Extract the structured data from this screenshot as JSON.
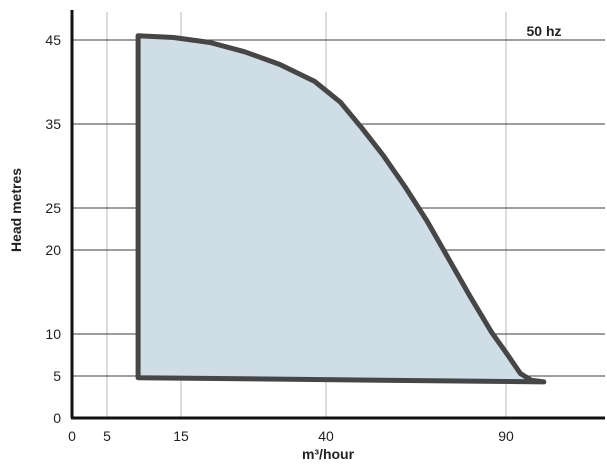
{
  "chart_data": {
    "type": "area",
    "title": "",
    "badge": "50 hz",
    "xlabel": "m³/hour",
    "ylabel": "Head metres",
    "x_ticks": [
      0,
      5,
      15,
      40,
      90
    ],
    "y_ticks": [
      0,
      5,
      10,
      20,
      25,
      35,
      45
    ],
    "x_gridlines": [
      5,
      15,
      40,
      90
    ],
    "y_gridlines": [
      5,
      10,
      20,
      25,
      35,
      45
    ],
    "grid": true,
    "series": [
      {
        "x": [
          9.2,
          9.2,
          14,
          20,
          26,
          32,
          38,
          44,
          50,
          56,
          62,
          68,
          74,
          80,
          86,
          90,
          94,
          97,
          100.5
        ],
        "y": [
          4.8,
          45.5,
          45.3,
          44.7,
          43.6,
          42.1,
          40.1,
          37.6,
          34.5,
          31.2,
          27.5,
          23.5,
          19.0,
          14.5,
          10.2,
          7.8,
          5.3,
          4.5,
          4.3
        ]
      }
    ]
  },
  "colors": {
    "fill": "#cfdde6",
    "outline": "#464646",
    "grid_vertical": "#b8b8b8",
    "grid_horizontal": "#3d3d3d",
    "axis": "#111111"
  }
}
